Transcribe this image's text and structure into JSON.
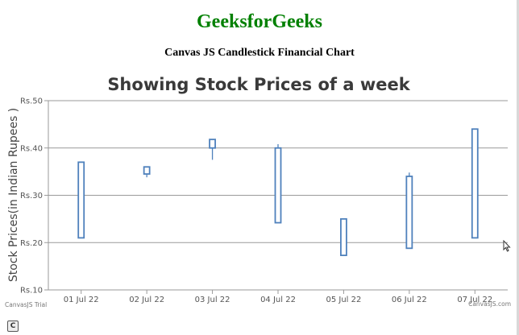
{
  "page": {
    "heading": "GeeksforGeeks",
    "subheading": "Canvas JS Candlestick Financial Chart"
  },
  "chart_data": {
    "type": "candlestick",
    "title": "Showing Stock Prices of a week",
    "xlabel": "",
    "ylabel": "Stock Prices(in Indian Rupees )",
    "yprefix": "Rs.",
    "ylim": [
      10,
      50
    ],
    "yticks": [
      10,
      20,
      30,
      40,
      50
    ],
    "grid": true,
    "series_color": "#4f81bc",
    "categories": [
      "01 Jul 22",
      "02 Jul 22",
      "03 Jul 22",
      "04 Jul 22",
      "05 Jul 22",
      "06 Jul 22",
      "07 Jul 22"
    ],
    "ohlc": [
      {
        "open": 37,
        "high": 37,
        "low": 21,
        "close": 21
      },
      {
        "open": 34.5,
        "high": 36,
        "low": 33.8,
        "close": 36
      },
      {
        "open": 40,
        "high": 41.8,
        "low": 37.5,
        "close": 41.8
      },
      {
        "open": 24.2,
        "high": 40.8,
        "low": 24.2,
        "close": 40
      },
      {
        "open": 25,
        "high": 25,
        "low": 17.3,
        "close": 17.3
      },
      {
        "open": 18.8,
        "high": 34.8,
        "low": 18.8,
        "close": 34
      },
      {
        "open": 21,
        "high": 44,
        "low": 21,
        "close": 44
      }
    ],
    "credits": {
      "left": "CanvasJS Trial",
      "right": "CanvasJS.com"
    }
  }
}
